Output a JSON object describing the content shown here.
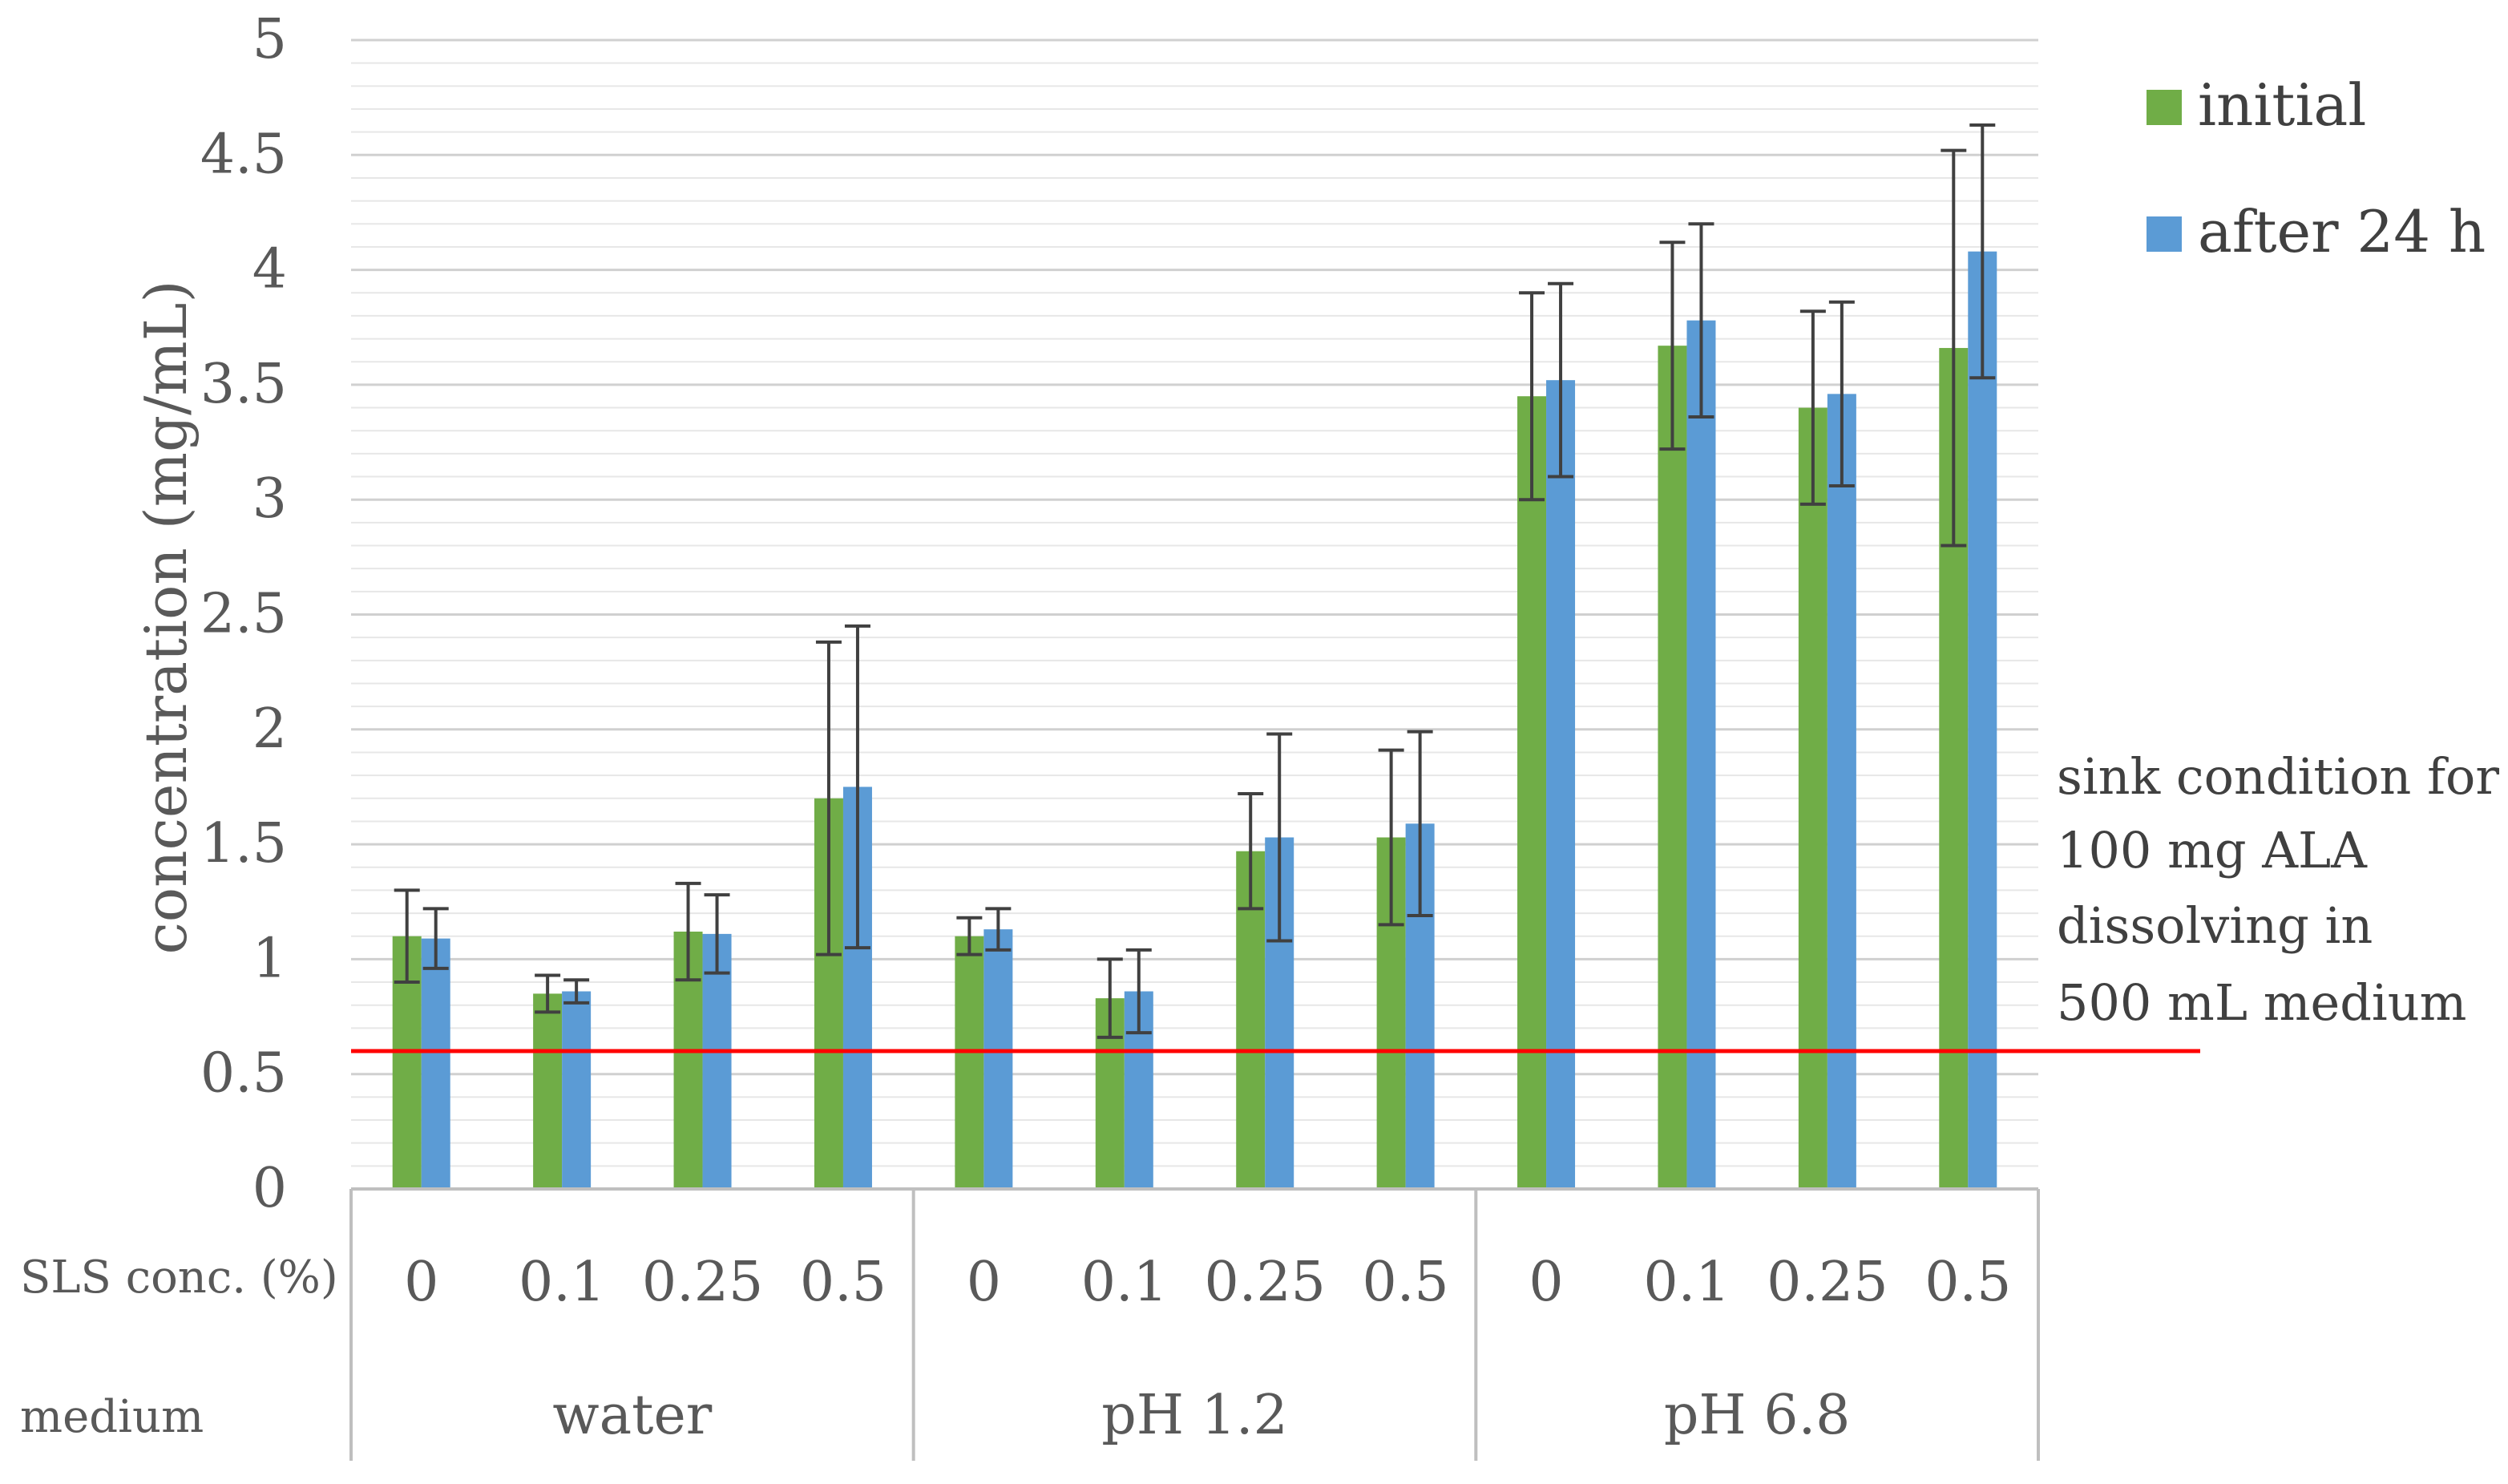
{
  "chart_data": {
    "type": "bar",
    "title": "",
    "xlabel": "",
    "ylabel": "concentration (mg/mL)",
    "ylim": [
      0,
      5
    ],
    "yticks": [
      "0",
      "0.5",
      "1",
      "1.5",
      "2",
      "2.5",
      "3",
      "3.5",
      "4",
      "4.5",
      "5"
    ],
    "ytick_values": [
      0,
      0.5,
      1,
      1.5,
      2,
      2.5,
      3,
      3.5,
      4,
      4.5,
      5
    ],
    "minor_gridline_step": 0.1,
    "row_labels": {
      "sls": "SLS conc. (%)",
      "medium": "medium"
    },
    "groups": [
      {
        "name": "water",
        "categories": [
          "0",
          "0.1",
          "0.25",
          "0.5"
        ]
      },
      {
        "name": "pH 1.2",
        "categories": [
          "0",
          "0.1",
          "0.25",
          "0.5"
        ]
      },
      {
        "name": "pH 6.8",
        "categories": [
          "0",
          "0.1",
          "0.25",
          "0.5"
        ]
      }
    ],
    "series": [
      {
        "name": "initial",
        "color": "#70AD47",
        "values": [
          1.1,
          0.85,
          1.12,
          1.7,
          1.1,
          0.83,
          1.47,
          1.53,
          3.45,
          3.67,
          3.4,
          3.66
        ],
        "errors": [
          0.2,
          0.08,
          0.21,
          0.68,
          0.08,
          0.17,
          0.25,
          0.38,
          0.45,
          0.45,
          0.42,
          0.86
        ]
      },
      {
        "name": "after 24 h",
        "color": "#5B9BD5",
        "values": [
          1.09,
          0.86,
          1.11,
          1.75,
          1.13,
          0.86,
          1.53,
          1.59,
          3.52,
          3.78,
          3.46,
          4.08
        ],
        "errors": [
          0.13,
          0.05,
          0.17,
          0.7,
          0.09,
          0.18,
          0.45,
          0.4,
          0.42,
          0.42,
          0.4,
          0.55
        ]
      }
    ],
    "reference_line": {
      "value": 0.6,
      "color": "#FF0000",
      "label_lines": [
        "sink condition for",
        "100 mg ALA",
        "dissolving in",
        "500 mL medium"
      ]
    },
    "legend": {
      "position": "top-right"
    },
    "grid": true
  }
}
